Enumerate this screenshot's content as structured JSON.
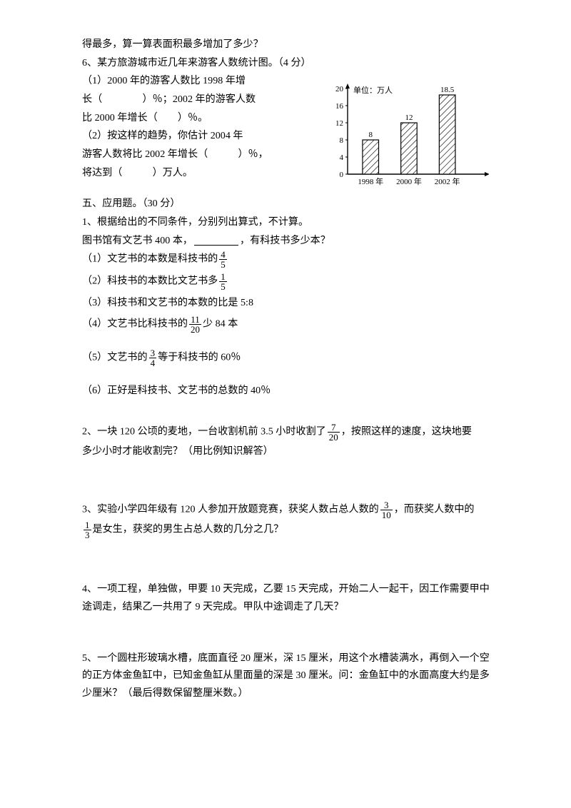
{
  "intro": {
    "ln1": "得最多，算一算表面积最多增加了多少？",
    "ln2": "6、某方旅游城市近几年来游客人数统计图。（4 分）",
    "ln3": "（1）2000 年的游客人数比 1998 年增",
    "ln4": "长（　　　　）％；2002 年的游客人数",
    "ln5": "比 2000 年增长（　　）％。",
    "ln6": "（2）按这样的趋势，你估计 2004 年",
    "ln7": "游客人数将比 2002 年增长（　　　）％，",
    "ln8": "将达到（　　　）万人。"
  },
  "chart": {
    "unit_label": "单位：万人",
    "y_ticks": [
      0,
      4,
      8,
      12,
      16,
      20
    ],
    "bars": [
      {
        "x_label": "1998 年",
        "value": 8,
        "display": "8"
      },
      {
        "x_label": "2000 年",
        "value": 12,
        "display": "12"
      },
      {
        "x_label": "2002 年",
        "value": 18.5,
        "display": "18.5"
      }
    ],
    "axis_color": "#000000",
    "bar_stroke": "#000000",
    "bar_fill": "#ffffff",
    "hatch_color": "#000000",
    "bg": "#ffffff",
    "font_size": 11
  },
  "sec5": {
    "title": "五、应用题。（30 分）",
    "q1_a": "1、根据给出的不同条件，分别列出算式，不计算。",
    "q1_b_pre": "图书馆有文艺书 400 本，",
    "q1_b_post": "，有科技书多少本？",
    "opts": {
      "o1": {
        "pre": "（1）文艺书的本数是科技书的",
        "num": "4",
        "den": "5",
        "post": ""
      },
      "o2": {
        "pre": "（2）科技书的本数比文艺书多",
        "num": "1",
        "den": "5",
        "post": ""
      },
      "o3": "（3）科技书和文艺书的本数的比是 5:8",
      "o4": {
        "pre": "（4）文艺书比科技书的",
        "num": "11",
        "den": "20",
        "post": "少 84 本"
      },
      "o5": {
        "pre": "（5）文艺书的",
        "num": "3",
        "den": "4",
        "post": "等于科技书的 60％"
      },
      "o6": "（6）正好是科技书、文艺书的总数的 40％"
    },
    "q2": {
      "pre": "2、一块 120 公顷的麦地，一台收割机前 3.5 小时收割了",
      "num": "7",
      "den": "20",
      "post": "，按照这样的速度，这块地要",
      "l2": "多少小时才能收割完？（用比例知识解答）"
    },
    "q3": {
      "pre": "3、实验小学四年级有 120 人参加开放题竞赛，获奖人数占总人数的",
      "num": "3",
      "den": "10",
      "mid": "，而获奖人数中的",
      "num2": "1",
      "den2": "3",
      "post": "是女生，获奖的男生占总人数的几分之几？"
    },
    "q4": "4、一项工程，单独做，甲要 10 天完成，乙要 15 天完成，开始二人一起干，因工作需要甲中途调走，结果乙一共用了 9 天完成。甲队中途调走了几天？",
    "q5": "5、一个圆柱形玻璃水槽，底面直径 20 厘米，深 15 厘米，用这个水槽装满水，再倒入一个空的正方体金鱼缸中，已知金鱼缸从里面量的深是 30 厘米。问：金鱼缸中的水面高度大约是多少厘米？（最后得数保留整厘米数。）"
  }
}
